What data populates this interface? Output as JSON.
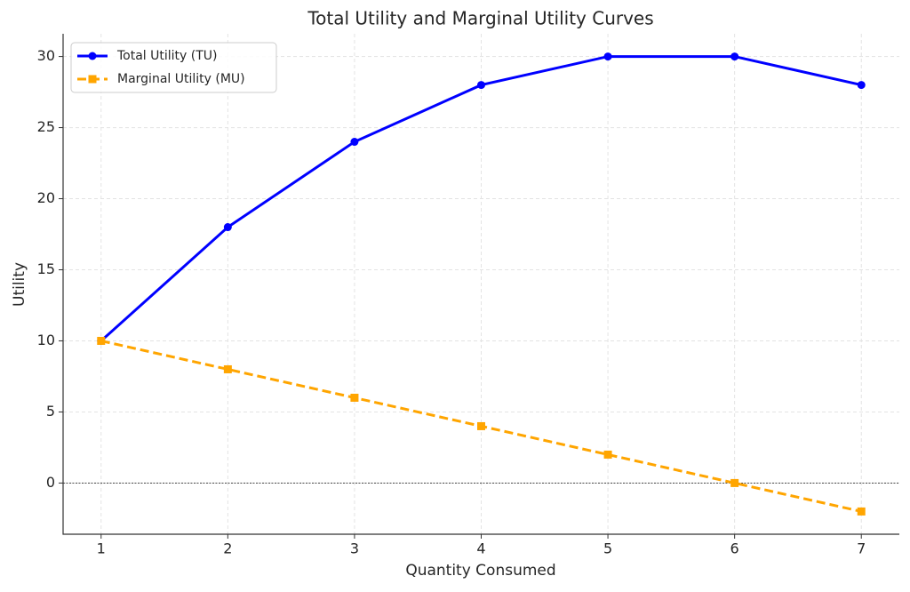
{
  "chart_data": {
    "type": "line",
    "title": "Total Utility and Marginal Utility Curves",
    "x_label": "Quantity Consumed",
    "y_label": "Utility",
    "x": [
      1,
      2,
      3,
      4,
      5,
      6,
      7
    ],
    "series": [
      {
        "name": "Total Utility (TU)",
        "color": "#0000ff",
        "marker": "circle",
        "linestyle": "solid",
        "values": [
          10,
          18,
          24,
          28,
          30,
          30,
          28
        ]
      },
      {
        "name": "Marginal Utility (MU)",
        "color": "#ffa500",
        "marker": "square",
        "linestyle": "dashed",
        "values": [
          10,
          8,
          6,
          4,
          2,
          0,
          -2
        ]
      }
    ],
    "xlim": [
      0.7,
      7.3
    ],
    "ylim": [
      -3.6,
      31.6
    ],
    "xticks": [
      1,
      2,
      3,
      4,
      5,
      6,
      7
    ],
    "yticks": [
      0,
      5,
      10,
      15,
      20,
      25,
      30
    ],
    "reference_line": 0,
    "grid": true,
    "legend": "upper left"
  }
}
